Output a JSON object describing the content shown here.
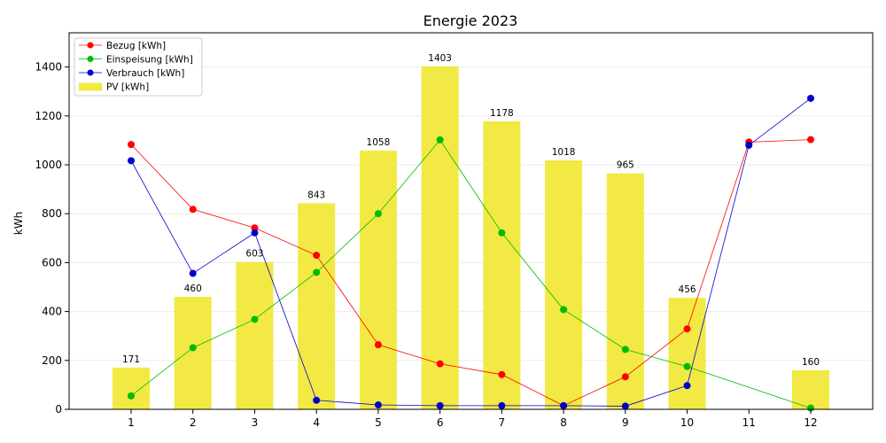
{
  "chart_data": {
    "type": "bar",
    "title": "Energie 2023",
    "xlabel": "",
    "ylabel": "kWh",
    "categories": [
      "1",
      "2",
      "3",
      "4",
      "5",
      "6",
      "7",
      "8",
      "9",
      "10",
      "11",
      "12"
    ],
    "ylim": [
      0,
      1540
    ],
    "yticks": [
      0,
      200,
      400,
      600,
      800,
      1000,
      1200,
      1400
    ],
    "grid": "horizontal",
    "legend_position": "top-left",
    "bar_series": {
      "name": "PV [kWh]",
      "color": "#f2e944",
      "values": [
        171,
        460,
        603,
        843,
        1058,
        1403,
        1178,
        1018,
        965,
        456,
        null,
        160
      ],
      "labels": [
        "171",
        "460",
        "603",
        "843",
        "1058",
        "1403",
        "1178",
        "1018",
        "965",
        "456",
        "",
        "160"
      ]
    },
    "line_series": [
      {
        "name": "Bezug [kWh]",
        "color": "#ff0000",
        "values": [
          1083,
          818,
          742,
          630,
          264,
          186,
          142,
          15,
          133,
          329,
          1093,
          1103
        ]
      },
      {
        "name": "Einspeisung [kWh]",
        "color": "#00bb00",
        "values": [
          55,
          252,
          368,
          560,
          800,
          1102,
          722,
          408,
          245,
          175,
          null,
          5
        ]
      },
      {
        "name": "Verbrauch [kWh]",
        "color": "#0000cc",
        "values": [
          1017,
          556,
          722,
          37,
          18,
          15,
          15,
          15,
          13,
          97,
          1080,
          1272
        ]
      }
    ]
  }
}
